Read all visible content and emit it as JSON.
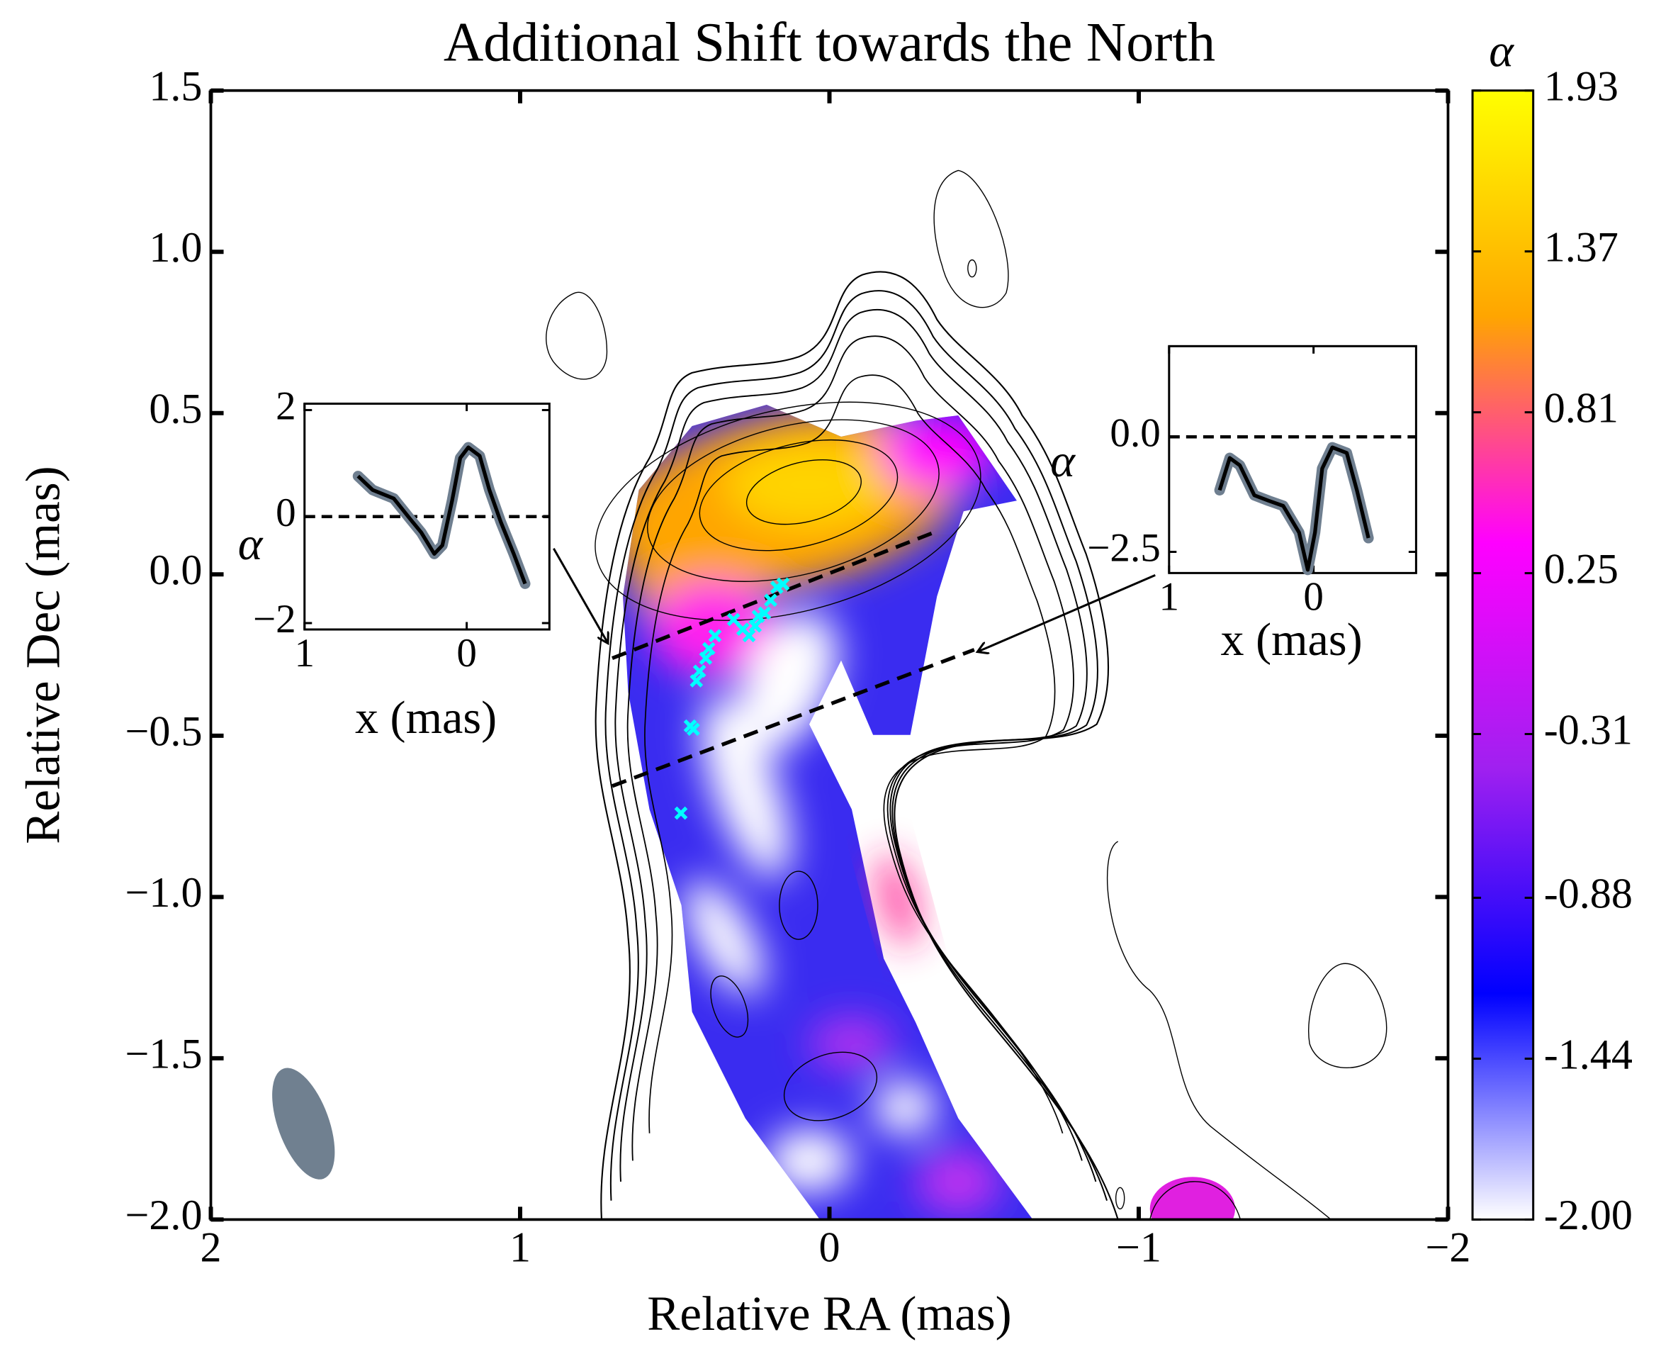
{
  "chart_data": [
    {
      "type": "scatter",
      "title": "Additional Shift towards the North",
      "xlabel": "Relative RA (mas)",
      "ylabel": "Relative Dec (mas)",
      "xlim": [
        2,
        -2
      ],
      "ylim": [
        -2,
        1.5
      ],
      "xticks": [
        2,
        1,
        0,
        {
          "value": -1,
          "label": "−1"
        },
        {
          "value": -2,
          "label": "−2"
        }
      ],
      "yticks": [
        1.5,
        {
          "value": 1,
          "label": "1.0"
        },
        0.5,
        {
          "value": 0,
          "label": "0.0"
        },
        {
          "value": -0.5,
          "label": "−0.5"
        },
        {
          "value": -1,
          "label": "−1.0"
        },
        {
          "value": -1.5,
          "label": "−1.5"
        },
        {
          "value": -2,
          "label": "−2.0"
        }
      ],
      "series": [
        {
          "color": "#00ffff",
          "x": [
            0.48,
            0.45,
            0.44,
            0.43,
            0.42,
            0.4,
            0.39,
            0.37,
            0.31,
            0.28,
            0.26,
            0.24,
            0.23,
            0.21,
            0.19,
            0.17,
            0.15
          ],
          "y": [
            -0.74,
            -0.47,
            -0.48,
            -0.33,
            -0.3,
            -0.26,
            -0.23,
            -0.19,
            -0.14,
            -0.17,
            -0.19,
            -0.16,
            -0.13,
            -0.12,
            -0.08,
            -0.04,
            -0.03
          ]
        }
      ],
      "colorbar": {
        "label": "α",
        "lim": [
          -2,
          1.93
        ],
        "ticks": [
          1.93,
          1.37,
          0.81,
          0.25,
          -0.31,
          -0.88,
          -1.44,
          {
            "value": -2,
            "label": "-2.00"
          }
        ],
        "colors": [
          "#ffffff",
          "#0000ff",
          "#a020f0",
          "#ff00ff",
          "#ffa500",
          "#ffff00"
        ]
      }
    },
    {
      "type": "line",
      "xlabel": "x (mas)",
      "ylabel": "α",
      "xlim": [
        1,
        -0.51
      ],
      "ylim": [
        -2.12,
        2.12
      ],
      "xticks": [
        1,
        0
      ],
      "yticks": [
        2,
        0,
        {
          "value": -2,
          "label": "−2"
        }
      ],
      "hline": 0,
      "band_color": "#6f7f90",
      "series": [
        {
          "color": "#000000",
          "x": [
            0.67,
            0.58,
            0.45,
            0.35,
            0.28,
            0.2,
            0.15,
            0.09,
            0.04,
            -0.01,
            -0.08,
            -0.14,
            -0.21,
            -0.29,
            -0.36
          ],
          "values": [
            0.76,
            0.5,
            0.34,
            -0.04,
            -0.3,
            -0.7,
            -0.54,
            0.3,
            1.1,
            1.3,
            1.14,
            0.5,
            -0.1,
            -0.7,
            -1.26
          ]
        }
      ]
    },
    {
      "type": "line",
      "xlabel": "x (mas)",
      "ylabel": "α",
      "xlim": [
        1,
        -0.71
      ],
      "ylim": [
        -2.96,
        1.97
      ],
      "xticks": [
        1,
        0
      ],
      "yticks": [
        {
          "value": 0,
          "label": "0.0"
        },
        {
          "value": -2.5,
          "label": "−2.5"
        }
      ],
      "hline": 0,
      "band_color": "#6f7f90",
      "series": [
        {
          "color": "#000000",
          "x": [
            0.65,
            0.58,
            0.51,
            0.41,
            0.31,
            0.21,
            0.1,
            0.04,
            -0.01,
            -0.06,
            -0.13,
            -0.23,
            -0.3,
            -0.38
          ],
          "values": [
            -1.16,
            -0.46,
            -0.62,
            -1.27,
            -1.39,
            -1.5,
            -2.08,
            -2.89,
            -2.08,
            -0.69,
            -0.23,
            -0.35,
            -1.16,
            -2.2
          ]
        }
      ]
    }
  ]
}
